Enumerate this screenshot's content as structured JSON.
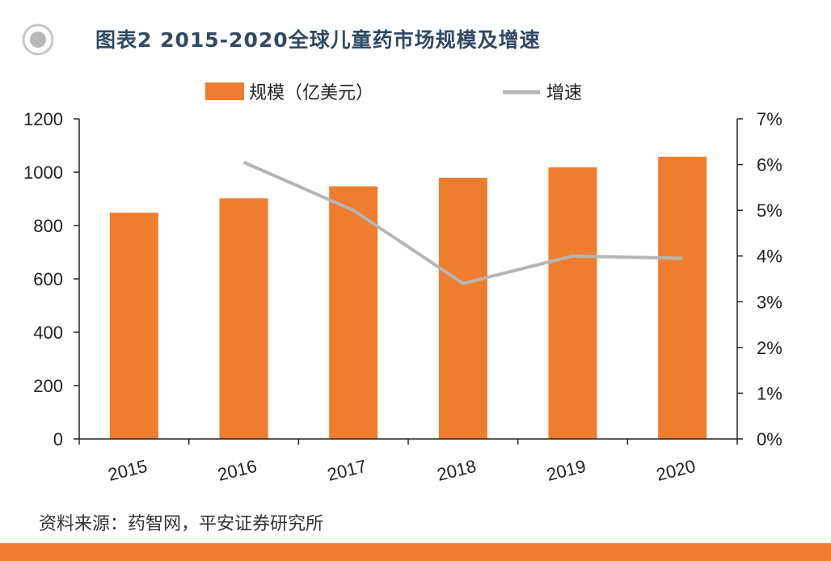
{
  "header": {
    "title": "图表2 2015-2020全球儿童药市场规模及增速"
  },
  "source": "资料来源：药智网，平安证券研究所",
  "colors": {
    "bar": "#ee7d2f",
    "line": "#b5b5b5",
    "accent": "#ee7d2f",
    "title": "#2f4a64"
  },
  "chart_data": {
    "type": "bar",
    "title": "图表2 2015-2020全球儿童药市场规模及增速",
    "categories": [
      "2015",
      "2016",
      "2017",
      "2018",
      "2019",
      "2020"
    ],
    "series": [
      {
        "name": "规模（亿美元）",
        "type": "bar",
        "axis": "left",
        "values": [
          848,
          902,
          947,
          979,
          1018,
          1058
        ]
      },
      {
        "name": "增速",
        "type": "line",
        "axis": "right",
        "values": [
          null,
          6.05,
          5.0,
          3.4,
          4.0,
          3.95
        ]
      }
    ],
    "y_left": {
      "min": 0,
      "max": 1200,
      "ticks": [
        0,
        200,
        400,
        600,
        800,
        1000,
        1200
      ],
      "tick_labels": [
        "0",
        "200",
        "400",
        "600",
        "800",
        "1000",
        "1200"
      ]
    },
    "y_right": {
      "min": 0,
      "max": 7,
      "ticks": [
        0,
        1,
        2,
        3,
        4,
        5,
        6,
        7
      ],
      "tick_labels": [
        "0%",
        "1%",
        "2%",
        "3%",
        "4%",
        "5%",
        "6%",
        "7%"
      ]
    },
    "legend": {
      "placement": "top",
      "items": [
        {
          "label": "规模（亿美元）",
          "marker": "bar"
        },
        {
          "label": "增速",
          "marker": "line"
        }
      ]
    },
    "grid": false,
    "xlabel": "",
    "ylabel": ""
  }
}
